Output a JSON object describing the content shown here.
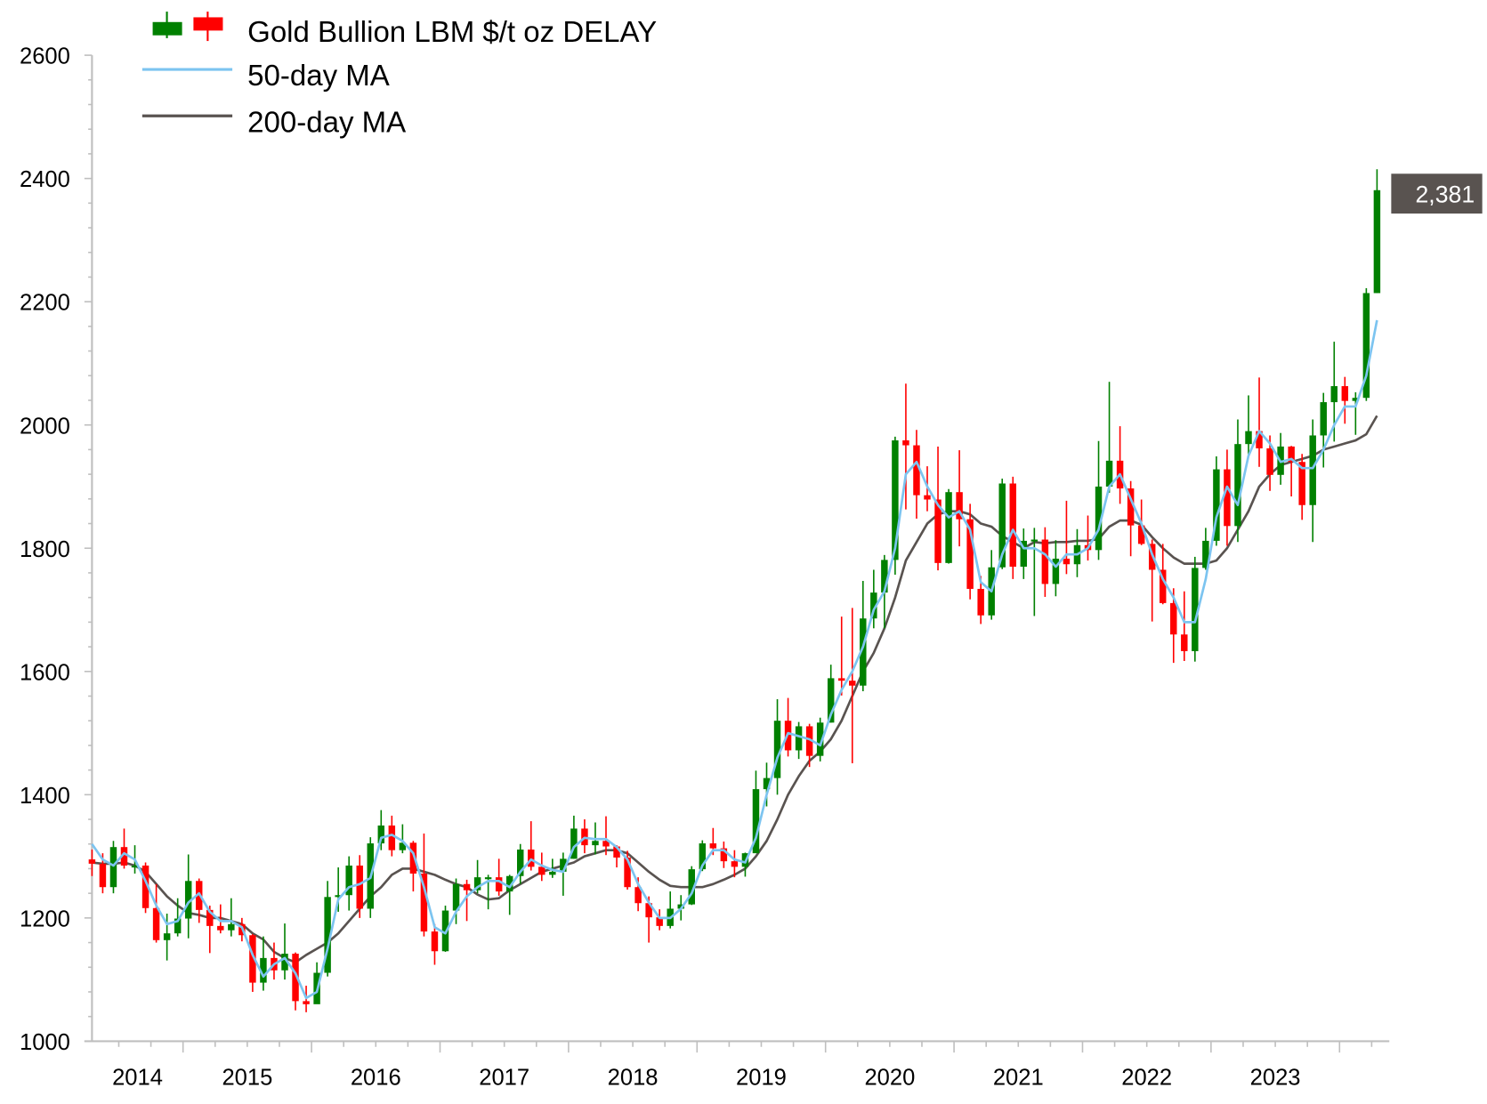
{
  "chart_data": {
    "type": "candlestick",
    "title": "",
    "xlabel": "",
    "ylabel": "",
    "ylim": [
      1000,
      2600
    ],
    "y_ticks": [
      "1000",
      "1200",
      "1400",
      "1600",
      "1800",
      "2000",
      "2200",
      "2400",
      "2600"
    ],
    "x_tick_labels": [
      "2014",
      "2015",
      "2016",
      "2017",
      "2018",
      "2019",
      "2020",
      "2021",
      "2022",
      "2023"
    ],
    "grid": false,
    "legend_position": "top-left",
    "legend": {
      "candles": "Gold Bullion LBM $/t oz DELAY",
      "ma50": "50-day MA",
      "ma200": "200-day MA"
    },
    "last_price_label": "2,381",
    "colors": {
      "up": "#008000",
      "down": "#ff0000",
      "ma50": "#7cc4f0",
      "ma200": "#595350",
      "tag": "#595350",
      "axis": "#bfbfbf"
    },
    "candle_fields": [
      "open",
      "high",
      "low",
      "close"
    ],
    "dates": [
      "2014-04",
      "2014-05",
      "2014-06",
      "2014-07",
      "2014-08",
      "2014-09",
      "2014-10",
      "2014-11",
      "2014-12",
      "2015-01",
      "2015-02",
      "2015-03",
      "2015-04",
      "2015-05",
      "2015-06",
      "2015-07",
      "2015-08",
      "2015-09",
      "2015-10",
      "2015-11",
      "2015-12",
      "2016-01",
      "2016-02",
      "2016-03",
      "2016-04",
      "2016-05",
      "2016-06",
      "2016-07",
      "2016-08",
      "2016-09",
      "2016-10",
      "2016-11",
      "2016-12",
      "2017-01",
      "2017-02",
      "2017-03",
      "2017-04",
      "2017-05",
      "2017-06",
      "2017-07",
      "2017-08",
      "2017-09",
      "2017-10",
      "2017-11",
      "2017-12",
      "2018-01",
      "2018-02",
      "2018-03",
      "2018-04",
      "2018-05",
      "2018-06",
      "2018-07",
      "2018-08",
      "2018-09",
      "2018-10",
      "2018-11",
      "2018-12",
      "2019-01",
      "2019-02",
      "2019-03",
      "2019-04",
      "2019-05",
      "2019-06",
      "2019-07",
      "2019-08",
      "2019-09",
      "2019-10",
      "2019-11",
      "2019-12",
      "2020-01",
      "2020-02",
      "2020-03",
      "2020-04",
      "2020-05",
      "2020-06",
      "2020-07",
      "2020-08",
      "2020-09",
      "2020-10",
      "2020-11",
      "2020-12",
      "2021-01",
      "2021-02",
      "2021-03",
      "2021-04",
      "2021-05",
      "2021-06",
      "2021-07",
      "2021-08",
      "2021-09",
      "2021-10",
      "2021-11",
      "2021-12",
      "2022-01",
      "2022-02",
      "2022-03",
      "2022-04",
      "2022-05",
      "2022-06",
      "2022-07",
      "2022-08",
      "2022-09",
      "2022-10",
      "2022-11",
      "2022-12",
      "2023-01",
      "2023-02",
      "2023-03",
      "2023-04",
      "2023-05",
      "2023-06",
      "2023-07",
      "2023-08",
      "2023-09",
      "2023-10",
      "2023-11",
      "2023-12",
      "2024-01",
      "2024-02",
      "2024-03",
      "2024-04"
    ],
    "candles": [
      [
        1295,
        1311,
        1268,
        1288
      ],
      [
        1288,
        1305,
        1240,
        1250
      ],
      [
        1250,
        1325,
        1240,
        1315
      ],
      [
        1315,
        1345,
        1280,
        1285
      ],
      [
        1285,
        1318,
        1272,
        1285
      ],
      [
        1285,
        1290,
        1208,
        1216
      ],
      [
        1216,
        1255,
        1160,
        1164
      ],
      [
        1164,
        1207,
        1131,
        1175
      ],
      [
        1175,
        1232,
        1170,
        1199
      ],
      [
        1199,
        1303,
        1167,
        1260
      ],
      [
        1260,
        1264,
        1192,
        1213
      ],
      [
        1213,
        1220,
        1143,
        1187
      ],
      [
        1187,
        1222,
        1175,
        1180
      ],
      [
        1180,
        1232,
        1170,
        1190
      ],
      [
        1190,
        1200,
        1162,
        1172
      ],
      [
        1172,
        1174,
        1080,
        1095
      ],
      [
        1095,
        1170,
        1082,
        1135
      ],
      [
        1135,
        1160,
        1100,
        1115
      ],
      [
        1115,
        1191,
        1100,
        1142
      ],
      [
        1142,
        1144,
        1050,
        1065
      ],
      [
        1065,
        1090,
        1047,
        1060
      ],
      [
        1060,
        1128,
        1061,
        1111
      ],
      [
        1111,
        1260,
        1105,
        1234
      ],
      [
        1234,
        1282,
        1210,
        1237
      ],
      [
        1237,
        1300,
        1212,
        1285
      ],
      [
        1285,
        1302,
        1200,
        1215
      ],
      [
        1215,
        1331,
        1200,
        1321
      ],
      [
        1321,
        1375,
        1310,
        1350
      ],
      [
        1350,
        1366,
        1300,
        1310
      ],
      [
        1310,
        1352,
        1305,
        1322
      ],
      [
        1322,
        1325,
        1243,
        1272
      ],
      [
        1272,
        1337,
        1170,
        1178
      ],
      [
        1178,
        1190,
        1124,
        1146
      ],
      [
        1146,
        1220,
        1145,
        1212
      ],
      [
        1212,
        1264,
        1190,
        1255
      ],
      [
        1255,
        1262,
        1195,
        1245
      ],
      [
        1245,
        1294,
        1240,
        1266
      ],
      [
        1266,
        1270,
        1214,
        1266
      ],
      [
        1266,
        1296,
        1236,
        1243
      ],
      [
        1243,
        1270,
        1205,
        1268
      ],
      [
        1268,
        1320,
        1255,
        1311
      ],
      [
        1311,
        1357,
        1277,
        1283
      ],
      [
        1283,
        1306,
        1260,
        1270
      ],
      [
        1270,
        1296,
        1265,
        1275
      ],
      [
        1275,
        1306,
        1236,
        1296
      ],
      [
        1296,
        1366,
        1296,
        1345
      ],
      [
        1345,
        1360,
        1305,
        1318
      ],
      [
        1318,
        1355,
        1303,
        1325
      ],
      [
        1325,
        1365,
        1302,
        1316
      ],
      [
        1316,
        1318,
        1282,
        1298
      ],
      [
        1298,
        1309,
        1246,
        1250
      ],
      [
        1250,
        1266,
        1211,
        1224
      ],
      [
        1224,
        1235,
        1160,
        1201
      ],
      [
        1201,
        1214,
        1180,
        1187
      ],
      [
        1187,
        1243,
        1183,
        1215
      ],
      [
        1215,
        1237,
        1196,
        1222
      ],
      [
        1222,
        1284,
        1221,
        1279
      ],
      [
        1279,
        1326,
        1276,
        1321
      ],
      [
        1321,
        1346,
        1302,
        1313
      ],
      [
        1313,
        1324,
        1281,
        1292
      ],
      [
        1292,
        1310,
        1266,
        1283
      ],
      [
        1283,
        1306,
        1267,
        1305
      ],
      [
        1305,
        1439,
        1306,
        1409
      ],
      [
        1409,
        1452,
        1381,
        1427
      ],
      [
        1427,
        1555,
        1400,
        1520
      ],
      [
        1520,
        1557,
        1462,
        1472
      ],
      [
        1472,
        1518,
        1458,
        1511
      ],
      [
        1511,
        1515,
        1445,
        1463
      ],
      [
        1463,
        1525,
        1454,
        1517
      ],
      [
        1517,
        1611,
        1517,
        1589
      ],
      [
        1589,
        1689,
        1561,
        1585
      ],
      [
        1585,
        1703,
        1451,
        1577
      ],
      [
        1577,
        1747,
        1568,
        1686
      ],
      [
        1686,
        1765,
        1670,
        1728
      ],
      [
        1728,
        1789,
        1670,
        1781
      ],
      [
        1781,
        1981,
        1757,
        1975
      ],
      [
        1975,
        2067,
        1863,
        1967
      ],
      [
        1967,
        1992,
        1848,
        1886
      ],
      [
        1886,
        1933,
        1860,
        1879
      ],
      [
        1879,
        1965,
        1764,
        1776
      ],
      [
        1776,
        1896,
        1775,
        1891
      ],
      [
        1891,
        1959,
        1803,
        1847
      ],
      [
        1847,
        1872,
        1717,
        1734
      ],
      [
        1734,
        1755,
        1677,
        1691
      ],
      [
        1691,
        1797,
        1684,
        1769
      ],
      [
        1769,
        1913,
        1766,
        1905
      ],
      [
        1905,
        1916,
        1750,
        1770
      ],
      [
        1770,
        1832,
        1750,
        1812
      ],
      [
        1812,
        1833,
        1690,
        1814
      ],
      [
        1814,
        1834,
        1721,
        1742
      ],
      [
        1742,
        1813,
        1722,
        1783
      ],
      [
        1783,
        1877,
        1758,
        1774
      ],
      [
        1774,
        1831,
        1753,
        1805
      ],
      [
        1805,
        1853,
        1780,
        1797
      ],
      [
        1797,
        1974,
        1781,
        1900
      ],
      [
        1900,
        2070,
        1890,
        1942
      ],
      [
        1942,
        1998,
        1872,
        1897
      ],
      [
        1897,
        1909,
        1787,
        1837
      ],
      [
        1837,
        1879,
        1805,
        1807
      ],
      [
        1807,
        1814,
        1681,
        1765
      ],
      [
        1765,
        1807,
        1709,
        1711
      ],
      [
        1711,
        1735,
        1614,
        1660
      ],
      [
        1660,
        1730,
        1617,
        1633
      ],
      [
        1633,
        1786,
        1616,
        1768
      ],
      [
        1768,
        1833,
        1765,
        1812
      ],
      [
        1812,
        1949,
        1804,
        1928
      ],
      [
        1928,
        1960,
        1804,
        1836
      ],
      [
        1836,
        2009,
        1810,
        1969
      ],
      [
        1969,
        2048,
        1949,
        1990
      ],
      [
        1990,
        2077,
        1932,
        1962
      ],
      [
        1962,
        1983,
        1893,
        1919
      ],
      [
        1919,
        1987,
        1903,
        1965
      ],
      [
        1965,
        1966,
        1884,
        1940
      ],
      [
        1940,
        1953,
        1846,
        1870
      ],
      [
        1870,
        2009,
        1810,
        1983
      ],
      [
        1983,
        2052,
        1931,
        2037
      ],
      [
        2037,
        2135,
        1973,
        2063
      ],
      [
        2063,
        2078,
        2002,
        2039
      ],
      [
        2039,
        2053,
        1984,
        2044
      ],
      [
        2044,
        2222,
        2039,
        2214
      ],
      [
        2214,
        2415,
        2214,
        2381
      ]
    ],
    "ma50": [
      1320,
      1295,
      1285,
      1305,
      1295,
      1260,
      1220,
      1190,
      1195,
      1225,
      1240,
      1210,
      1195,
      1195,
      1185,
      1140,
      1105,
      1125,
      1135,
      1110,
      1070,
      1080,
      1150,
      1230,
      1250,
      1255,
      1265,
      1330,
      1335,
      1325,
      1305,
      1250,
      1185,
      1175,
      1210,
      1235,
      1250,
      1260,
      1260,
      1250,
      1275,
      1295,
      1285,
      1278,
      1275,
      1315,
      1330,
      1328,
      1328,
      1315,
      1295,
      1255,
      1225,
      1200,
      1200,
      1215,
      1240,
      1285,
      1310,
      1310,
      1295,
      1290,
      1330,
      1400,
      1460,
      1500,
      1495,
      1490,
      1480,
      1530,
      1570,
      1600,
      1640,
      1700,
      1730,
      1800,
      1920,
      1940,
      1900,
      1870,
      1850,
      1860,
      1830,
      1745,
      1730,
      1790,
      1830,
      1800,
      1800,
      1790,
      1770,
      1790,
      1790,
      1800,
      1830,
      1900,
      1920,
      1880,
      1840,
      1790,
      1750,
      1720,
      1680,
      1680,
      1750,
      1850,
      1900,
      1870,
      1950,
      1990,
      1970,
      1940,
      1945,
      1930,
      1930,
      1960,
      2000,
      2030,
      2030,
      2080,
      2170
    ],
    "ma200": [
      1290,
      1288,
      1288,
      1290,
      1285,
      1275,
      1255,
      1235,
      1220,
      1208,
      1205,
      1200,
      1200,
      1195,
      1190,
      1175,
      1165,
      1145,
      1135,
      1128,
      1140,
      1150,
      1160,
      1175,
      1195,
      1215,
      1235,
      1250,
      1270,
      1280,
      1280,
      1275,
      1270,
      1262,
      1255,
      1250,
      1238,
      1230,
      1232,
      1245,
      1255,
      1265,
      1275,
      1280,
      1285,
      1290,
      1300,
      1305,
      1310,
      1310,
      1305,
      1290,
      1275,
      1262,
      1252,
      1250,
      1250,
      1250,
      1255,
      1262,
      1270,
      1280,
      1300,
      1325,
      1360,
      1400,
      1430,
      1455,
      1470,
      1490,
      1520,
      1560,
      1600,
      1630,
      1670,
      1720,
      1780,
      1810,
      1840,
      1855,
      1860,
      1860,
      1855,
      1840,
      1835,
      1820,
      1810,
      1800,
      1810,
      1808,
      1810,
      1810,
      1812,
      1812,
      1815,
      1835,
      1845,
      1845,
      1838,
      1818,
      1800,
      1785,
      1775,
      1775,
      1775,
      1780,
      1800,
      1830,
      1860,
      1900,
      1920,
      1935,
      1940,
      1945,
      1950,
      1960,
      1965,
      1970,
      1975,
      1985,
      2015
    ]
  }
}
